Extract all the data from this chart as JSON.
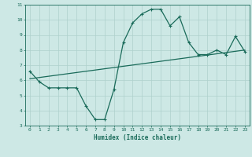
{
  "xlabel": "Humidex (Indice chaleur)",
  "ylabel": "",
  "bg_color": "#cde8e5",
  "grid_color": "#aed0cc",
  "line_color": "#1a6b5a",
  "xlim": [
    -0.5,
    23.5
  ],
  "ylim": [
    3,
    11
  ],
  "yticks": [
    3,
    4,
    5,
    6,
    7,
    8,
    9,
    10,
    11
  ],
  "xticks": [
    0,
    1,
    2,
    3,
    4,
    5,
    6,
    7,
    8,
    9,
    10,
    11,
    12,
    13,
    14,
    15,
    16,
    17,
    18,
    19,
    20,
    21,
    22,
    23
  ],
  "curve_x": [
    0,
    1,
    2,
    3,
    4,
    5,
    6,
    7,
    8,
    9,
    10,
    11,
    12,
    13,
    14,
    15,
    16,
    17,
    18,
    19,
    20,
    21,
    22,
    23
  ],
  "curve_y": [
    6.6,
    5.9,
    5.5,
    5.5,
    5.5,
    5.5,
    4.3,
    3.4,
    3.4,
    5.4,
    8.5,
    9.8,
    10.4,
    10.7,
    10.7,
    9.6,
    10.2,
    8.5,
    7.7,
    7.7,
    8.0,
    7.7,
    8.9,
    7.9
  ],
  "trend_x": [
    0,
    23
  ],
  "trend_y": [
    6.1,
    8.0
  ]
}
